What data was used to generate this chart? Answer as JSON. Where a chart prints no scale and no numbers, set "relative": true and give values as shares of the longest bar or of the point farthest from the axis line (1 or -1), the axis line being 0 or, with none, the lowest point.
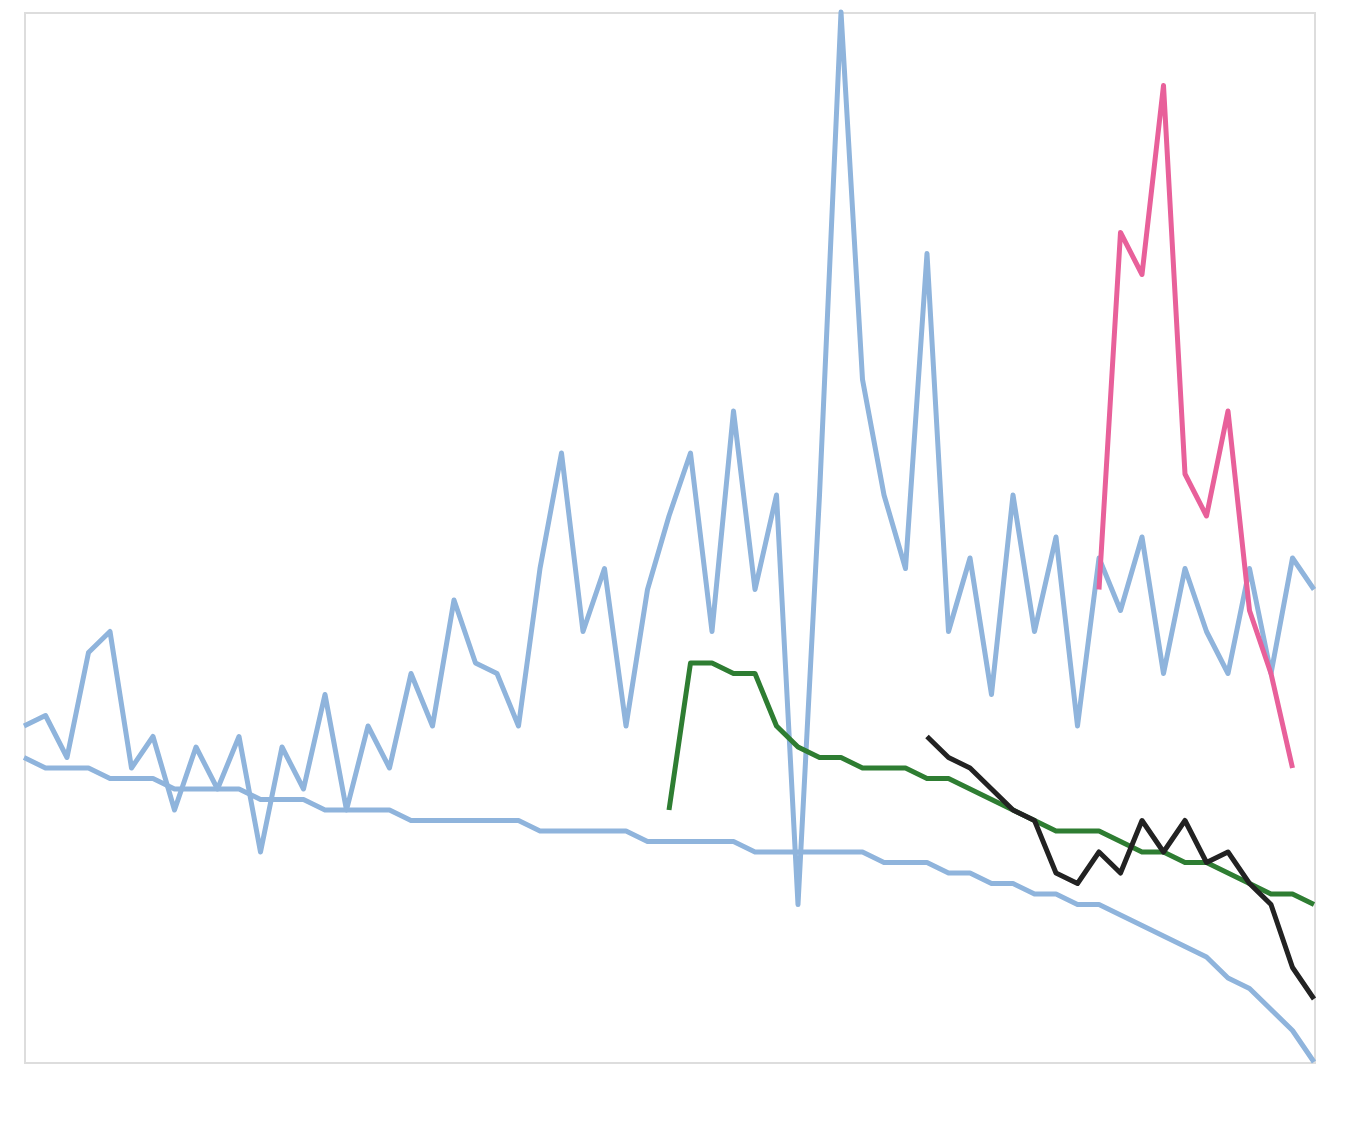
{
  "chart_data": {
    "type": "line",
    "relative": true,
    "line_style": "solid",
    "marker": "none",
    "categories": [
      null,
      null,
      null,
      null,
      null,
      null,
      null,
      null,
      null,
      null,
      null,
      null,
      null,
      null,
      null,
      null,
      null,
      null,
      null,
      null,
      null,
      null,
      null,
      null,
      null,
      null,
      null,
      null,
      null,
      null,
      null,
      null,
      null,
      null,
      null,
      null,
      null,
      null,
      null,
      null,
      null,
      null,
      null,
      null,
      null,
      null,
      null,
      null,
      null,
      null,
      null,
      null,
      null,
      null,
      null,
      null,
      null,
      null,
      null,
      null,
      null
    ],
    "series": [
      {
        "color": "#8fb4dc",
        "values": [
          0.32,
          0.33,
          0.29,
          0.39,
          0.41,
          0.28,
          0.31,
          0.24,
          0.3,
          0.26,
          0.31,
          0.2,
          0.3,
          0.26,
          0.35,
          0.24,
          0.32,
          0.28,
          0.37,
          0.32,
          0.44,
          0.38,
          0.37,
          0.32,
          0.47,
          0.58,
          0.41,
          0.47,
          0.32,
          0.45,
          0.52,
          0.58,
          0.41,
          0.62,
          0.45,
          0.54,
          0.15,
          0.54,
          1,
          0.65,
          0.54,
          0.47,
          0.77,
          0.41,
          0.48,
          0.35,
          0.54,
          0.41,
          0.5,
          0.32,
          0.48,
          0.43,
          0.5,
          0.37,
          0.47,
          0.41,
          0.37,
          0.47,
          0.37,
          0.48,
          0.45
        ]
      },
      {
        "color": "#8fb4dc",
        "values": [
          0.29,
          0.28,
          0.28,
          0.28,
          0.27,
          0.27,
          0.27,
          0.26,
          0.26,
          0.26,
          0.26,
          0.25,
          0.25,
          0.25,
          0.24,
          0.24,
          0.24,
          0.24,
          0.23,
          0.23,
          0.23,
          0.23,
          0.23,
          0.23,
          0.22,
          0.22,
          0.22,
          0.22,
          0.22,
          0.21,
          0.21,
          0.21,
          0.21,
          0.21,
          0.2,
          0.2,
          0.2,
          0.2,
          0.2,
          0.2,
          0.19,
          0.19,
          0.19,
          0.18,
          0.18,
          0.17,
          0.17,
          0.16,
          0.16,
          0.15,
          0.15,
          0.14,
          0.13,
          0.12,
          0.11,
          0.1,
          0.08,
          0.07,
          0.05,
          0.03,
          0
        ]
      },
      {
        "color": "#e8609a",
        "values": [
          null,
          null,
          null,
          null,
          null,
          null,
          null,
          null,
          null,
          null,
          null,
          null,
          null,
          null,
          null,
          null,
          null,
          null,
          null,
          null,
          null,
          null,
          null,
          null,
          null,
          null,
          null,
          null,
          null,
          null,
          null,
          null,
          null,
          null,
          null,
          null,
          null,
          null,
          null,
          null,
          null,
          null,
          null,
          null,
          null,
          null,
          null,
          null,
          null,
          null,
          0.45,
          0.79,
          0.75,
          0.93,
          0.56,
          0.52,
          0.62,
          0.43,
          0.37,
          0.28,
          null
        ]
      },
      {
        "color": "#2e7d32",
        "values": [
          null,
          null,
          null,
          null,
          null,
          null,
          null,
          null,
          null,
          null,
          null,
          null,
          null,
          null,
          null,
          null,
          null,
          null,
          null,
          null,
          null,
          null,
          null,
          null,
          null,
          null,
          null,
          null,
          null,
          null,
          0.24,
          0.38,
          0.38,
          0.37,
          0.37,
          0.32,
          0.3,
          0.29,
          0.29,
          0.28,
          0.28,
          0.28,
          0.27,
          0.27,
          0.26,
          0.25,
          0.24,
          0.23,
          0.22,
          0.22,
          0.22,
          0.21,
          0.2,
          0.2,
          0.19,
          0.19,
          0.18,
          0.17,
          0.16,
          0.16,
          0.15
        ]
      },
      {
        "color": "#222222",
        "values": [
          null,
          null,
          null,
          null,
          null,
          null,
          null,
          null,
          null,
          null,
          null,
          null,
          null,
          null,
          null,
          null,
          null,
          null,
          null,
          null,
          null,
          null,
          null,
          null,
          null,
          null,
          null,
          null,
          null,
          null,
          null,
          null,
          null,
          null,
          null,
          null,
          null,
          null,
          null,
          null,
          null,
          null,
          0.31,
          0.29,
          0.28,
          0.26,
          0.24,
          0.23,
          0.18,
          0.17,
          0.2,
          0.18,
          0.23,
          0.2,
          0.23,
          0.19,
          0.2,
          0.17,
          0.15,
          0.09,
          0.06
        ]
      }
    ]
  }
}
